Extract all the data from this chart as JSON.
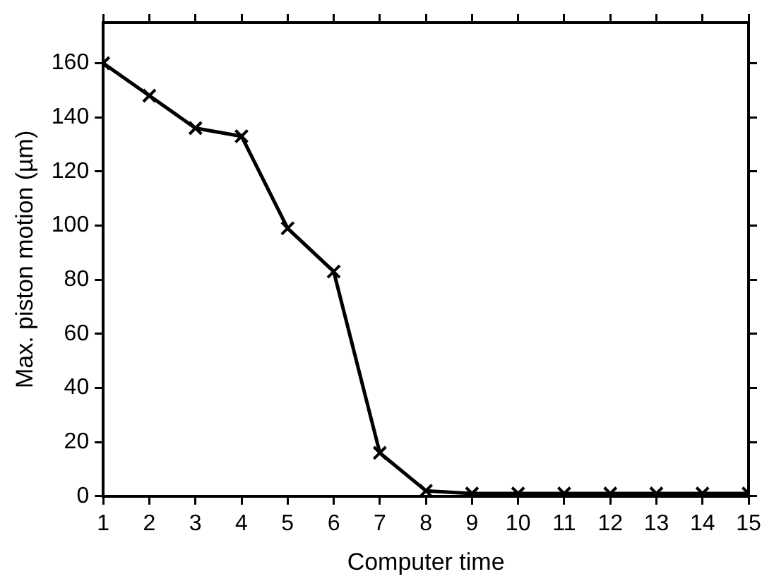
{
  "chart_data": {
    "type": "line",
    "xlabel": "Computer time",
    "ylabel": "Max. piston motion (µm)",
    "x": [
      1,
      2,
      3,
      4,
      5,
      6,
      7,
      8,
      9,
      10,
      11,
      12,
      13,
      14,
      15
    ],
    "series": [
      {
        "color": "#000000",
        "values": [
          160,
          148,
          136,
          133,
          99,
          83,
          16,
          2,
          1,
          1,
          1,
          1,
          1,
          1,
          1
        ]
      }
    ],
    "xlim": [
      1,
      15
    ],
    "xticks": [
      1,
      2,
      3,
      4,
      5,
      6,
      7,
      8,
      9,
      10,
      11,
      12,
      13,
      14,
      15
    ],
    "ylim": [
      0,
      175
    ],
    "yticks": [
      0,
      20,
      40,
      60,
      80,
      100,
      120,
      140,
      160
    ],
    "grid": false,
    "legend": false,
    "marker": "cross",
    "line_style": "solid"
  }
}
